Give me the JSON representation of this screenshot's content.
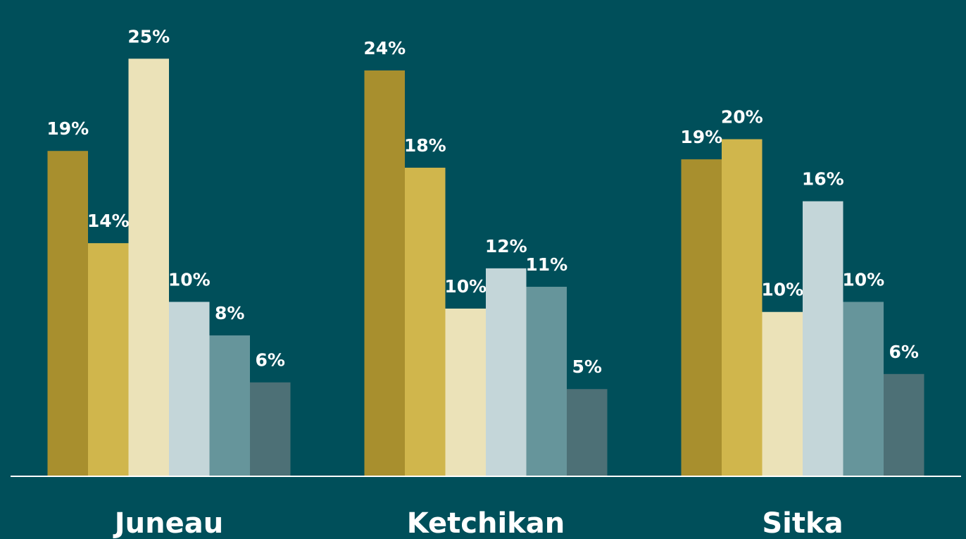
{
  "chart_data": {
    "type": "bar",
    "categories": [
      "Juneau",
      "Ketchikan",
      "Sitka"
    ],
    "series": [
      {
        "color": "#a88f2e",
        "values": [
          19.4,
          24.2,
          18.9
        ],
        "value_labels": [
          "19%",
          "24%",
          "19%"
        ]
      },
      {
        "color": "#d0b64c",
        "values": [
          13.9,
          18.4,
          20.1
        ],
        "value_labels": [
          "14%",
          "18%",
          "20%"
        ]
      },
      {
        "color": "#ebe2b8",
        "values": [
          24.9,
          10.0,
          9.8
        ],
        "value_labels": [
          "25%",
          "10%",
          "10%"
        ]
      },
      {
        "color": "#c4d6d9",
        "values": [
          10.4,
          12.4,
          16.4
        ],
        "value_labels": [
          "10%",
          "12%",
          "16%"
        ]
      },
      {
        "color": "#66959b",
        "values": [
          8.4,
          11.3,
          10.4
        ],
        "value_labels": [
          "8%",
          "11%",
          "10%"
        ]
      },
      {
        "color": "#4d7076",
        "values": [
          5.6,
          5.2,
          6.1
        ],
        "value_labels": [
          "6%",
          "5%",
          "6%"
        ]
      }
    ],
    "ylim": [
      0,
      28.4
    ]
  }
}
